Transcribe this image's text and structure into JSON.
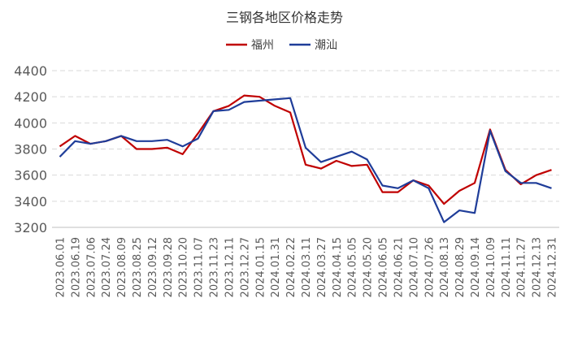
{
  "chart_data": {
    "type": "line",
    "title": "三钢各地区价格走势",
    "xlabel": "",
    "ylabel": "",
    "ylim": [
      3200,
      4400
    ],
    "yticks": [
      3200,
      3400,
      3600,
      3800,
      4000,
      4200,
      4400
    ],
    "grid": true,
    "legend_position": "top-center",
    "xtick_labels": [
      "2023.06.01",
      "2023.06.19",
      "2023.07.06",
      "2023.07.24",
      "2023.08.09",
      "2023.08.25",
      "2023.09.12",
      "2023.09.28",
      "2023.10.20",
      "2023.11.07",
      "2023.11.23",
      "2023.12.11",
      "2023.12.27",
      "2024.01.15",
      "2024.01.31",
      "2024.02.22",
      "2024.03.11",
      "2024.03.27",
      "2024.04.15",
      "2024.05.05",
      "2024.05.20",
      "2024.06.05",
      "2024.06.21",
      "2024.07.10",
      "2024.07.26",
      "2024.08.13",
      "2024.08.29",
      "2024.09.14",
      "2024.10.09",
      "2024.11.11",
      "2024.11.27",
      "2024.12.13",
      "2024.12.31"
    ],
    "x": [
      "2023.06.01",
      "2023.06.19",
      "2023.07.06",
      "2023.07.24",
      "2023.08.09",
      "2023.08.25",
      "2023.09.12",
      "2023.09.28",
      "2023.10.20",
      "2023.11.07",
      "2023.11.23",
      "2023.12.11",
      "2023.12.27",
      "2024.01.15",
      "2024.01.31",
      "2024.02.22",
      "2024.03.11",
      "2024.03.27",
      "2024.04.15",
      "2024.05.05",
      "2024.05.20",
      "2024.06.05",
      "2024.06.21",
      "2024.07.10",
      "2024.07.26",
      "2024.08.13",
      "2024.08.29",
      "2024.09.14",
      "2024.10.09",
      "2024.11.11",
      "2024.11.27",
      "2024.12.13",
      "2024.12.31"
    ],
    "series": [
      {
        "name": "福州",
        "color": "#c00000",
        "values": [
          3820,
          3900,
          3840,
          3860,
          3900,
          3800,
          3800,
          3810,
          3760,
          3920,
          4090,
          4130,
          4210,
          4200,
          4130,
          4080,
          3680,
          3650,
          3710,
          3670,
          3680,
          3470,
          3470,
          3560,
          3520,
          3380,
          3480,
          3540,
          3950,
          3640,
          3530,
          3600,
          3640
        ]
      },
      {
        "name": "潮汕",
        "color": "#1f3d99",
        "values": [
          3740,
          3860,
          3840,
          3860,
          3900,
          3860,
          3860,
          3870,
          3820,
          3880,
          4090,
          4100,
          4160,
          4170,
          4180,
          4190,
          3810,
          3700,
          3740,
          3780,
          3720,
          3520,
          3500,
          3560,
          3500,
          3240,
          3330,
          3310,
          3940,
          3630,
          3540,
          3540,
          3500
        ]
      }
    ]
  }
}
